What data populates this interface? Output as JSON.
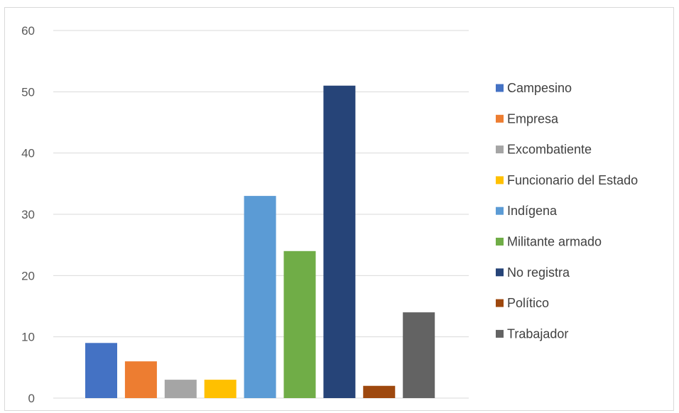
{
  "chart_data": {
    "type": "bar",
    "title": "",
    "xlabel": "",
    "ylabel": "",
    "ylim": [
      0,
      60
    ],
    "yticks": [
      0,
      10,
      20,
      30,
      40,
      50,
      60
    ],
    "grid": true,
    "legend_position": "right",
    "series": [
      {
        "name": "Campesino",
        "value": 9,
        "color": "#4472C4"
      },
      {
        "name": "Empresa",
        "value": 6,
        "color": "#ED7D31"
      },
      {
        "name": "Excombatiente",
        "value": 3,
        "color": "#A5A5A5"
      },
      {
        "name": "Funcionario del Estado",
        "value": 3,
        "color": "#FFC000"
      },
      {
        "name": "Indígena",
        "value": 33,
        "color": "#5B9BD5"
      },
      {
        "name": "Militante armado",
        "value": 24,
        "color": "#70AD47"
      },
      {
        "name": "No registra",
        "value": 51,
        "color": "#264478"
      },
      {
        "name": "Político",
        "value": 2,
        "color": "#9E480E"
      },
      {
        "name": "Trabajador",
        "value": 14,
        "color": "#636363"
      }
    ]
  }
}
